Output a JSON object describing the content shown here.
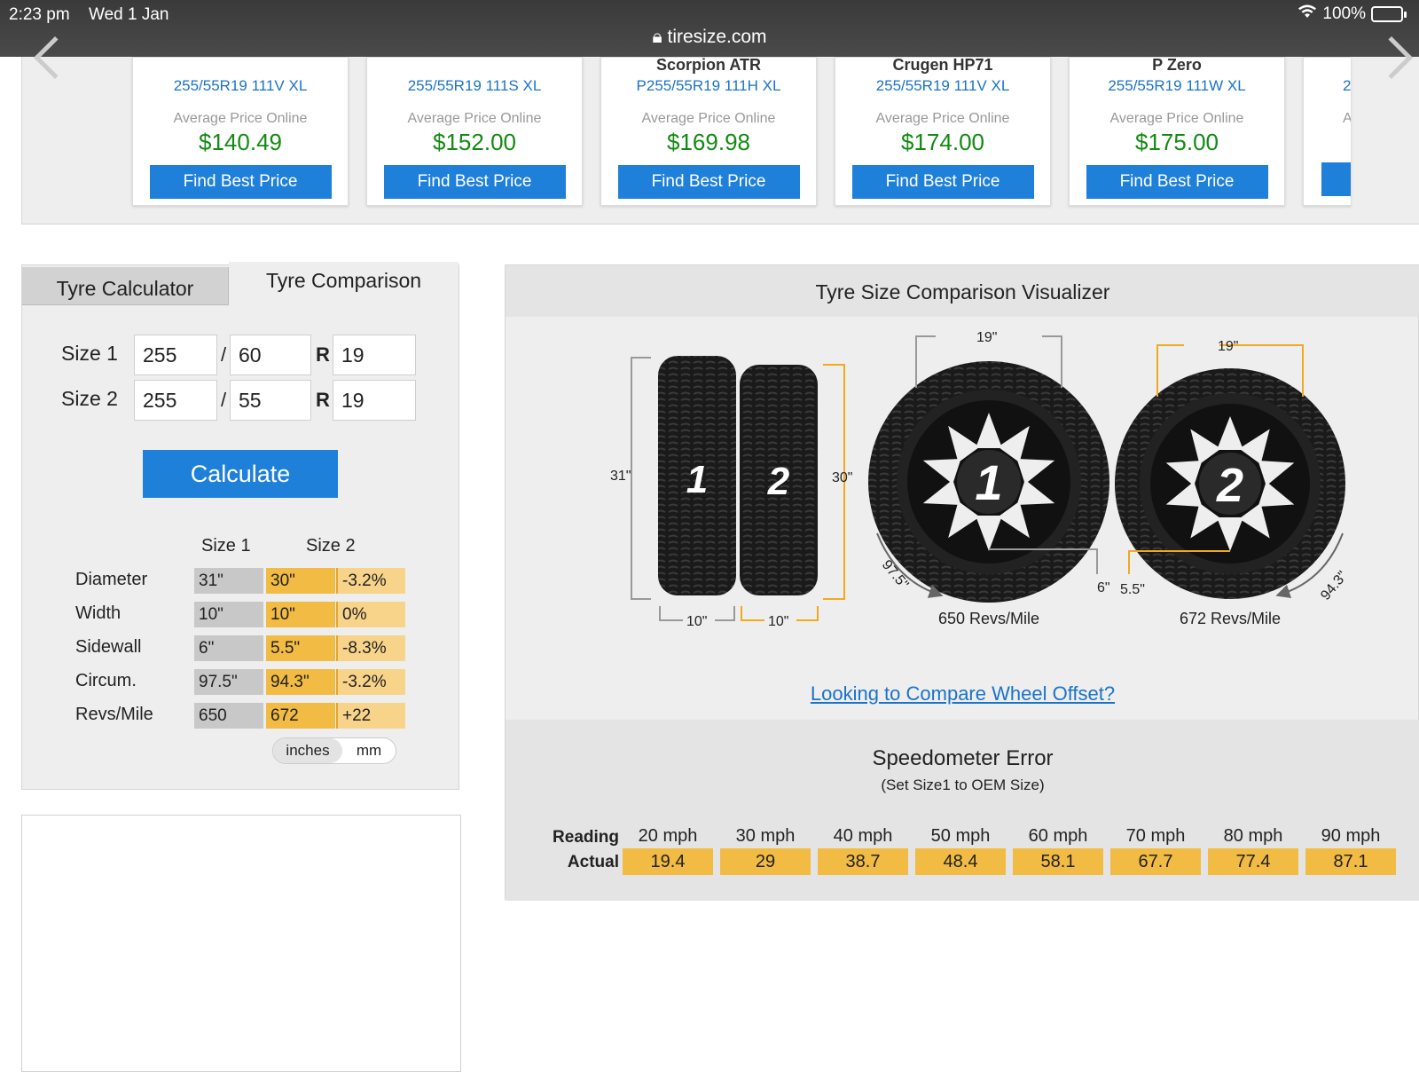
{
  "status": {
    "time": "2:23 pm",
    "date": "Wed 1 Jan",
    "url": "tiresize.com",
    "battery": "100%"
  },
  "carousel": {
    "cards": [
      {
        "name": "",
        "size": "255/55R19 111V XL",
        "avg": "Average Price Online",
        "price": "$140.49",
        "button": "Find Best Price"
      },
      {
        "name": "",
        "size": "255/55R19 111S XL",
        "avg": "Average Price Online",
        "price": "$152.00",
        "button": "Find Best Price"
      },
      {
        "name": "Scorpion ATR",
        "size": "P255/55R19 111H XL",
        "avg": "Average Price Online",
        "price": "$169.98",
        "button": "Find Best Price"
      },
      {
        "name": "Crugen HP71",
        "size": "255/55R19 111V XL",
        "avg": "Average Price Online",
        "price": "$174.00",
        "button": "Find Best Price"
      },
      {
        "name": "P Zero",
        "size": "255/55R19 111W XL",
        "avg": "Average Price Online",
        "price": "$175.00",
        "button": "Find Best Price"
      },
      {
        "name": "",
        "size": "2",
        "avg": "A",
        "price": "",
        "button": ""
      }
    ]
  },
  "calculator": {
    "tab_calc": "Tyre Calculator",
    "tab_compare": "Tyre Comparison",
    "size1_label": "Size 1",
    "size2_label": "Size 2",
    "slash": "/",
    "r": "R",
    "size1": {
      "width": "255",
      "aspect": "60",
      "rim": "19"
    },
    "size2": {
      "width": "255",
      "aspect": "55",
      "rim": "19"
    },
    "calculate": "Calculate",
    "results": {
      "head1": "Size 1",
      "head2": "Size 2",
      "rows": [
        {
          "label": "Diameter",
          "s1": "31\"",
          "s2": "30\"",
          "diff": "-3.2%"
        },
        {
          "label": "Width",
          "s1": "10\"",
          "s2": "10\"",
          "diff": "0%"
        },
        {
          "label": "Sidewall",
          "s1": "6\"",
          "s2": "5.5\"",
          "diff": "-8.3%"
        },
        {
          "label": "Circum.",
          "s1": "97.5\"",
          "s2": "94.3\"",
          "diff": "-3.2%"
        },
        {
          "label": "Revs/Mile",
          "s1": "650",
          "s2": "672",
          "diff": "+22"
        }
      ]
    },
    "units": {
      "selected": "inches",
      "other": "mm"
    }
  },
  "visualizer": {
    "title": "Tyre Size Comparison Visualizer",
    "side_labels": {
      "d1": "31\"",
      "d2": "30\"",
      "w1": "10\"",
      "w2": "10\"",
      "t1": "1",
      "t2": "2"
    },
    "wheel1": {
      "rim": "19\"",
      "sidewall": "6\"",
      "circ": "97.5\"",
      "revs": "650 Revs/Mile",
      "num": "1"
    },
    "wheel2": {
      "rim": "19\"",
      "sidewall": "5.5\"",
      "circ": "94.3\"",
      "revs": "672 Revs/Mile",
      "num": "2"
    },
    "compare_link": "Looking to Compare Wheel Offset?"
  },
  "speedometer": {
    "title": "Speedometer Error",
    "subtitle": "(Set Size1 to OEM Size)",
    "reading_label": "Reading",
    "actual_label": "Actual",
    "readings": [
      "20 mph",
      "30 mph",
      "40 mph",
      "50 mph",
      "60 mph",
      "70 mph",
      "80 mph",
      "90 mph"
    ],
    "actuals": [
      "19.4",
      "29",
      "38.7",
      "48.4",
      "58.1",
      "67.7",
      "77.4",
      "87.1"
    ]
  },
  "colors": {
    "accent": "#1f80d9",
    "price": "#138a13",
    "highlight": "#f2bb43",
    "dim_orange": "#f2a91d"
  }
}
